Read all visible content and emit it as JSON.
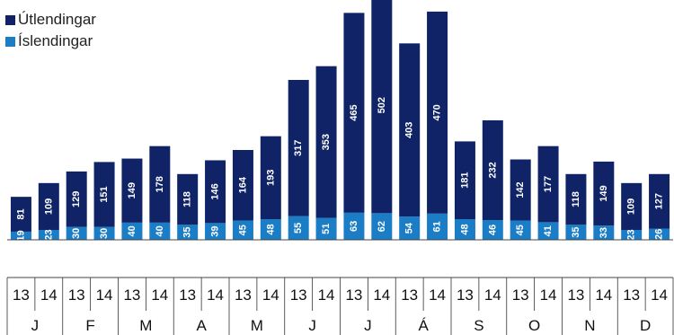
{
  "chart_data": {
    "type": "bar",
    "stacked": true,
    "title": "",
    "xlabel": "",
    "ylabel": "",
    "grid": false,
    "legend_position": "top-left",
    "year_labels": [
      "13",
      "14"
    ],
    "months": [
      "J",
      "F",
      "M",
      "A",
      "M",
      "J",
      "J",
      "Á",
      "S",
      "O",
      "N",
      "D"
    ],
    "categories": [
      "J 13",
      "J 14",
      "F 13",
      "F 14",
      "M 13",
      "M 14",
      "A 13",
      "A 14",
      "M 13",
      "M 14",
      "J 13",
      "J 14",
      "J 13",
      "J 14",
      "Á 13",
      "Á 14",
      "S 13",
      "S 14",
      "O 13",
      "O 14",
      "N 13",
      "N 14",
      "D 13",
      "D 14"
    ],
    "series": [
      {
        "name": "Íslendingar",
        "color": "#1a7dc5",
        "values": [
          19,
          23,
          30,
          30,
          40,
          40,
          35,
          39,
          45,
          48,
          55,
          51,
          63,
          62,
          54,
          61,
          48,
          46,
          45,
          41,
          35,
          33,
          23,
          26
        ]
      },
      {
        "name": "Útlendingar",
        "color": "#0f2366",
        "values": [
          81,
          109,
          129,
          151,
          149,
          178,
          118,
          146,
          164,
          193,
          317,
          353,
          465,
          502,
          403,
          470,
          181,
          232,
          142,
          177,
          118,
          149,
          109,
          127
        ]
      }
    ]
  }
}
